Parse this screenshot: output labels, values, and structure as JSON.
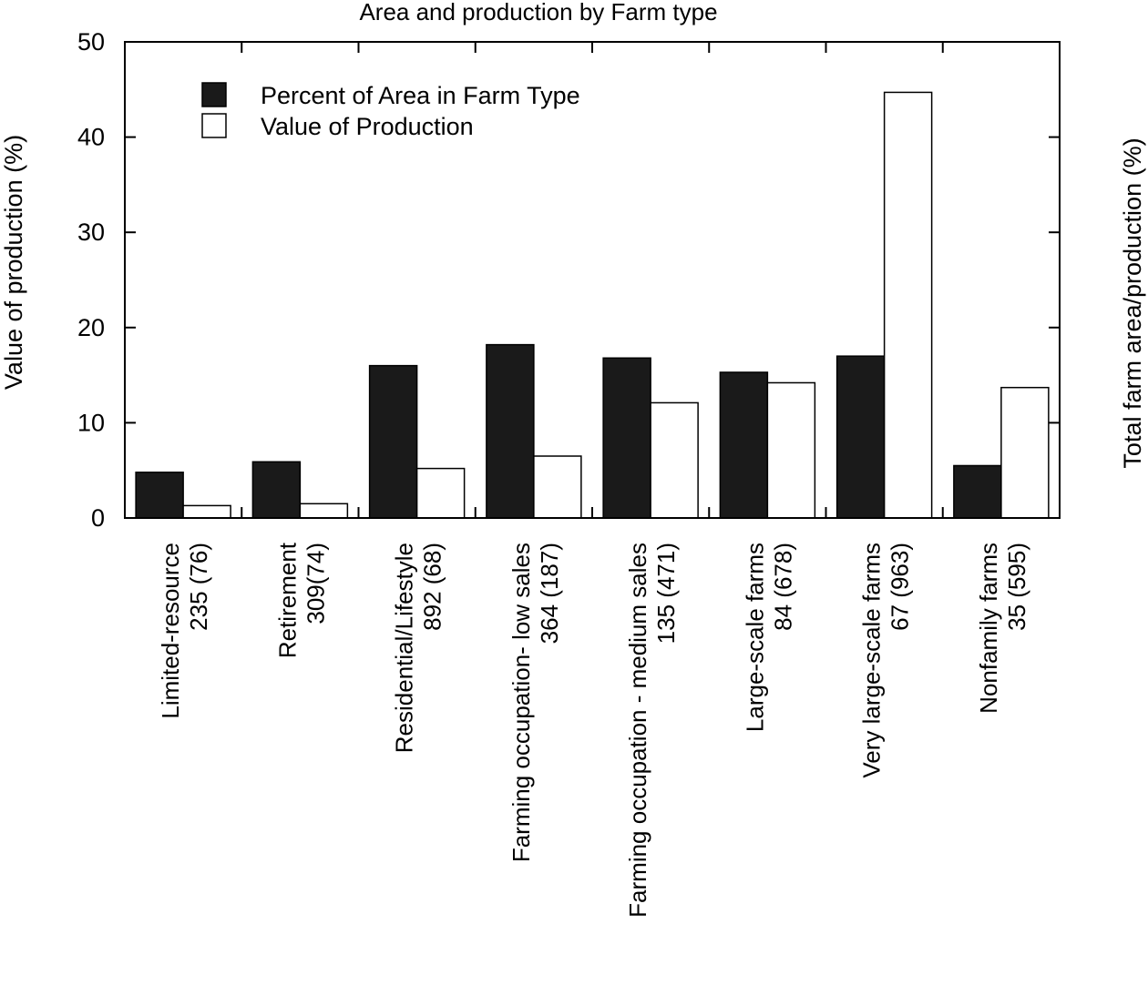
{
  "chart_data": {
    "type": "bar",
    "title": "Area and production by Farm type",
    "ylabel": "Value of production (%)",
    "y2label": "Total farm area/production (%)",
    "ylim": [
      0,
      50
    ],
    "yticks": [
      "0",
      "10",
      "20",
      "30",
      "40",
      "50"
    ],
    "grid": false,
    "legend_position": "top-left",
    "categories": [
      {
        "line1": "Limited-resource",
        "line2": "235 (76)"
      },
      {
        "line1": "Retirement",
        "line2": "309(74)"
      },
      {
        "line1": "Residential/Lifestyle",
        "line2": "892 (68)"
      },
      {
        "line1": "Farming occupation- low sales",
        "line2": "364 (187)"
      },
      {
        "line1": "Farming occupation - medium sales",
        "line2": "135 (471)"
      },
      {
        "line1": "Large-scale farms",
        "line2": "84 (678)"
      },
      {
        "line1": "Very large-scale farms",
        "line2": "67 (963)"
      },
      {
        "line1": "Nonfamily farms",
        "line2": "35 (595)"
      }
    ],
    "series": [
      {
        "name": "Percent of Area in Farm Type",
        "color": "#1a1a1a",
        "values": [
          4.8,
          5.9,
          16.0,
          18.2,
          16.8,
          15.3,
          17.0,
          5.5
        ]
      },
      {
        "name": "Value of Production",
        "color": "#ffffff",
        "values": [
          1.3,
          1.5,
          5.2,
          6.5,
          12.1,
          14.2,
          44.7,
          13.7
        ]
      }
    ]
  }
}
